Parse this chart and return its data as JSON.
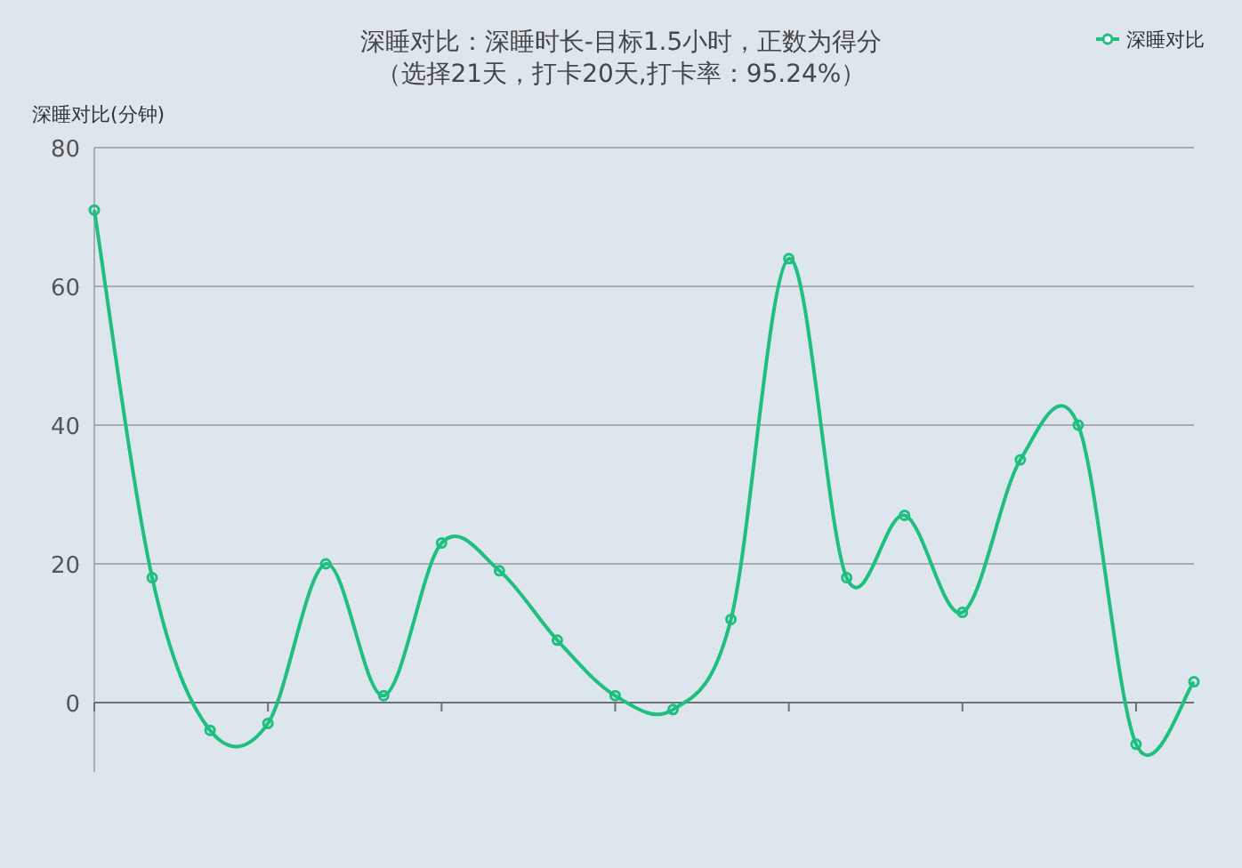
{
  "chart_data": {
    "type": "line",
    "title": "深睡对比：深睡时长-目标1.5小时，正数为得分",
    "subtitle": "（选择21天，打卡20天,打卡率：95.24%）",
    "ylabel": "深睡对比(分钟)",
    "categories": [
      null,
      null,
      null,
      null,
      null,
      null,
      null,
      null,
      null,
      null,
      null,
      null,
      null,
      null,
      null,
      null,
      null,
      null,
      null,
      null
    ],
    "series": [
      {
        "name": "深睡对比",
        "color": "#1fbf7f",
        "values": [
          71,
          18,
          -4,
          -3,
          20,
          1,
          23,
          19,
          9,
          1,
          -1,
          12,
          64,
          18,
          27,
          13,
          35,
          40,
          -6,
          3
        ]
      }
    ],
    "ylim": [
      -10,
      80
    ],
    "yticks": [
      0,
      20,
      40,
      60,
      80
    ],
    "grid": "y",
    "legend": "top right",
    "marker": "circle",
    "tick_labels": "y"
  }
}
